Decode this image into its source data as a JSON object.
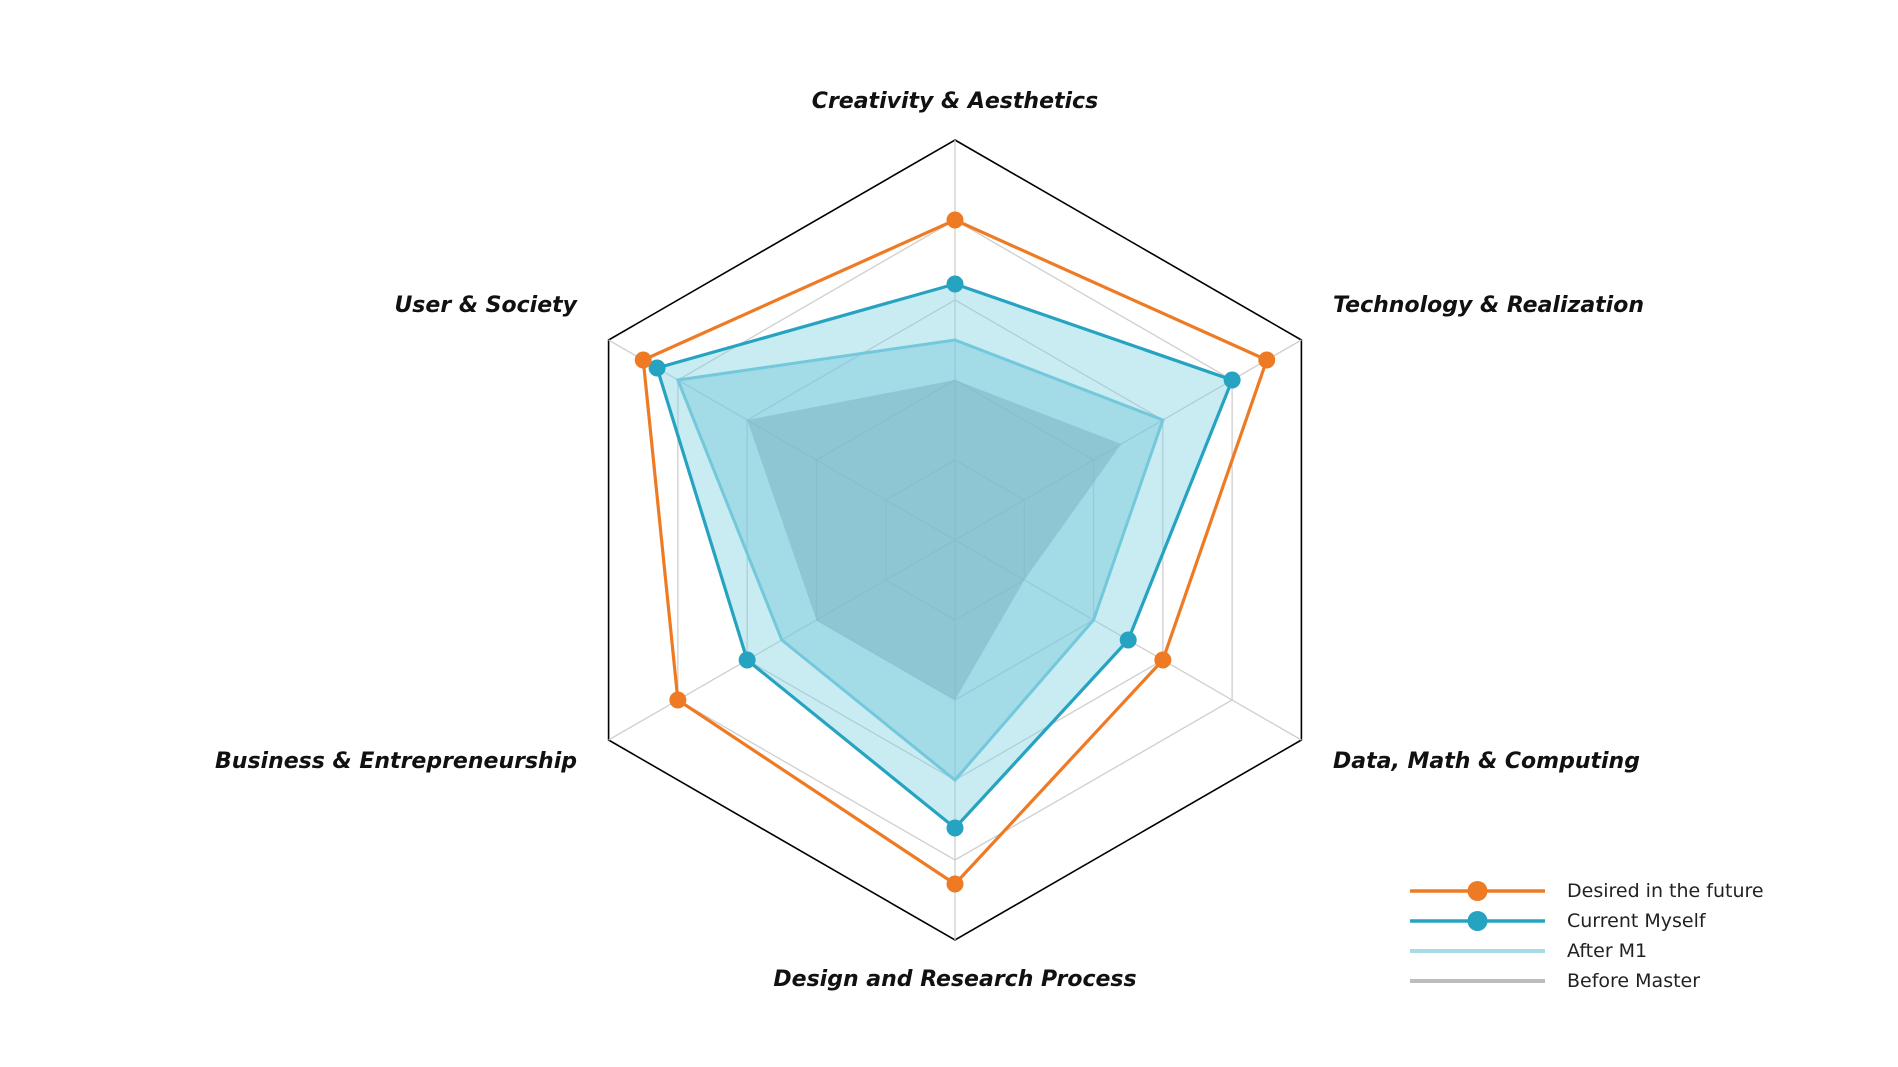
{
  "chart_data": {
    "type": "radar",
    "axes": [
      "Creativity & Aesthetics",
      "Technology & Realization",
      "Data, Math & Computing",
      "Design and Research Process",
      "Business & Entrepreneurship",
      "User & Society"
    ],
    "range": [
      0,
      5
    ],
    "grid_levels": 5,
    "series": [
      {
        "name": "Before Master",
        "values": [
          2.0,
          2.4,
          1.0,
          2.0,
          2.0,
          3.0
        ],
        "color": "#7f7f7f",
        "fill": "#8a8a8a",
        "markers": false
      },
      {
        "name": "After M1",
        "values": [
          2.5,
          3.0,
          2.0,
          3.0,
          2.5,
          4.0
        ],
        "color": "#6cc3d8",
        "fill": "#6cc3d8",
        "markers": false
      },
      {
        "name": "Current Myself",
        "values": [
          3.2,
          4.0,
          2.5,
          3.6,
          3.0,
          4.3
        ],
        "color": "#27a3c2",
        "fill": "#7fcfdf",
        "markers": true
      },
      {
        "name": "Desired in the future",
        "values": [
          4.0,
          4.5,
          3.0,
          4.3,
          4.0,
          4.5
        ],
        "color": "#ee7b24",
        "fill": "none",
        "markers": true
      }
    ],
    "legend": {
      "position": "bottom-right",
      "order": [
        "Desired in the future",
        "Current Myself",
        "After M1",
        "Before Master"
      ]
    }
  }
}
